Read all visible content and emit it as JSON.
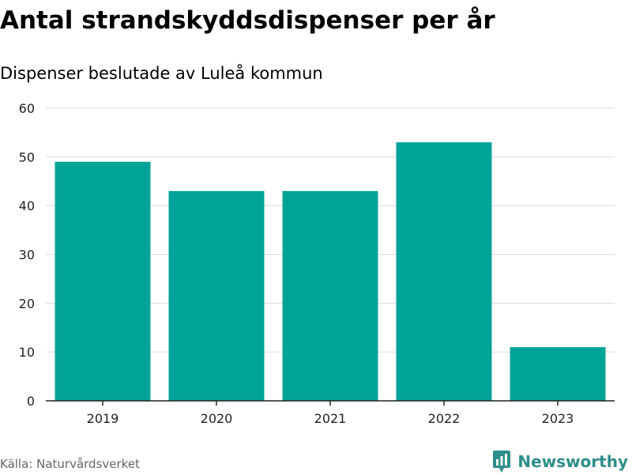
{
  "title": "Antal strandskyddsdispenser per år",
  "subtitle": "Dispenser beslutade av Luleå kommun",
  "source": "Källa: Naturvårdsverket",
  "brand": "Newsworthy",
  "colors": {
    "bar": "#00a398",
    "grid": "#dddddd",
    "axis": "#222222",
    "brand": "#2e8e89"
  },
  "chart_data": {
    "type": "bar",
    "categories": [
      "2019",
      "2020",
      "2021",
      "2022",
      "2023"
    ],
    "values": [
      49,
      43,
      43,
      53,
      11
    ],
    "ylim": [
      0,
      60
    ],
    "yticks": [
      0,
      10,
      20,
      30,
      40,
      50,
      60
    ],
    "grid": true,
    "legend": "none"
  }
}
